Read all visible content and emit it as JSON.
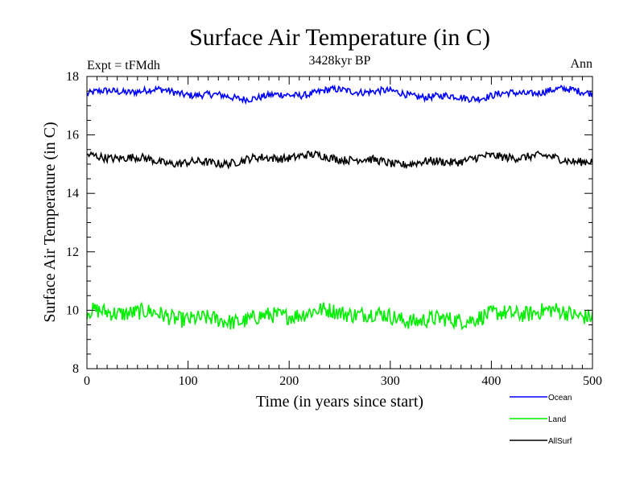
{
  "chart_data": {
    "type": "line",
    "title": "Surface Air Temperature (in C)",
    "subtitle": "3428kyr BP",
    "annotation_left": "Expt = tFMdh",
    "annotation_right": "Ann",
    "xlabel": "Time (in years since start)",
    "ylabel": "Surface Air Temperature (in C)",
    "xlim": [
      0,
      500
    ],
    "ylim": [
      8,
      18
    ],
    "x_ticks": [
      0,
      100,
      200,
      300,
      400,
      500
    ],
    "y_ticks": [
      8,
      10,
      12,
      14,
      16,
      18
    ],
    "grid": false,
    "legend_position": "bottom-right, outside plot",
    "series": [
      {
        "name": "Ocean",
        "color": "#0000ff",
        "mean": 17.4,
        "amplitude": 0.12,
        "noise": 0.12,
        "n_points": 500
      },
      {
        "name": "Land",
        "color": "#00ee00",
        "mean": 9.8,
        "amplitude": 0.15,
        "noise": 0.28,
        "n_points": 500
      },
      {
        "name": "AllSurf",
        "color": "#000000",
        "mean": 15.15,
        "amplitude": 0.12,
        "noise": 0.14,
        "n_points": 500
      }
    ]
  }
}
